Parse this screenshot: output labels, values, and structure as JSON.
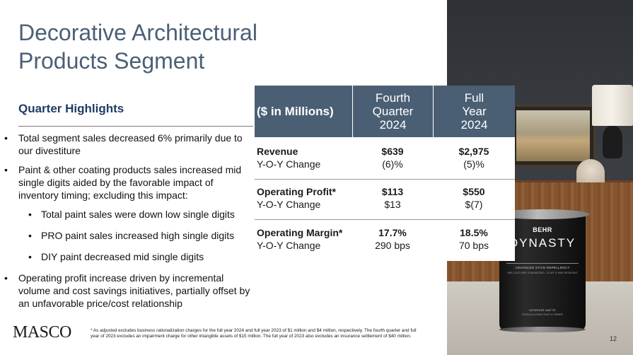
{
  "title": {
    "line1": "Decorative Architectural",
    "line2": "Products Segment"
  },
  "highlights": {
    "heading": "Quarter Highlights",
    "bullets": [
      "Total segment sales decreased 6% primarily due to our divestiture",
      "Paint & other coating products sales increased mid single digits aided by the favorable impact of inventory timing; excluding this impact:",
      "Operating profit increase driven by incremental volume and cost savings initiatives, partially offset by an unfavorable price/cost relationship"
    ],
    "sub_bullets": [
      "Total paint sales were down low single digits",
      "PRO paint sales increased high single digits",
      "DIY paint decreased mid single digits"
    ]
  },
  "table": {
    "header_label": "($ in Millions)",
    "col_q4": [
      "Fourth",
      "Quarter",
      "2024"
    ],
    "col_fy": [
      "Full",
      "Year",
      "2024"
    ],
    "rows": [
      {
        "label": "Revenue",
        "sublabel": "Y-O-Y Change",
        "q4": "$639",
        "q4_change": "(6)%",
        "fy": "$2,975",
        "fy_change": "(5)%"
      },
      {
        "label": "Operating Profit*",
        "sublabel": "Y-O-Y Change",
        "q4": "$113",
        "q4_change": "$13",
        "fy": "$550",
        "fy_change": "$(7)"
      },
      {
        "label": "Operating Margin*",
        "sublabel": "Y-O-Y Change",
        "q4": "17.7%",
        "q4_change": "290 bps",
        "fy": "18.5%",
        "fy_change": "70 bps"
      }
    ]
  },
  "can": {
    "brand": "BEHR",
    "name": "DYNASTY",
    "tag1": "ADVANCED STAIN REPELLENCY",
    "tag2": "ONE-COAT HIDE GUARANTEED · SCUFF & MAR RESISTANT",
    "tag3": "INTERIOR MATTE",
    "tag4": "STAIN-BLOCKING PAINT & PRIMER"
  },
  "footer": {
    "logo": "MASCO",
    "footnote": "* As adjusted excludes business rationalization charges for the full year 2024 and full year 2023 of $1 million and $4 million, respectively. The fourth quarter and full year of 2023 excludes an impairment charge for other intangible assets of $15 million. The full year of 2023 also excludes an insurance settlement of $40 million.",
    "page_number": "12"
  },
  "colors": {
    "title": "#4b6075",
    "heading": "#1f3c63",
    "table_header": "#4b5f74"
  }
}
